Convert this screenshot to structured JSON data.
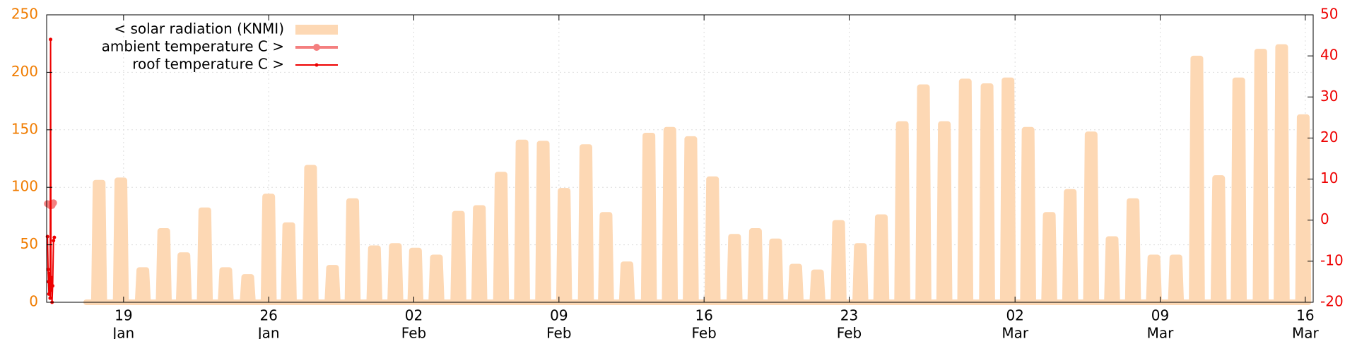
{
  "chart_data": {
    "type": "line",
    "grid": true,
    "legend": "top left",
    "xlim": [
      15.29,
      76.38
    ],
    "xticks": [
      {
        "value": 19,
        "label": "19",
        "month": "Jan"
      },
      {
        "value": 26,
        "label": "26",
        "month": "Jan"
      },
      {
        "value": 33,
        "label": "02",
        "month": "Feb"
      },
      {
        "value": 40,
        "label": "09",
        "month": "Feb"
      },
      {
        "value": 47,
        "label": "16",
        "month": "Feb"
      },
      {
        "value": 54,
        "label": "23",
        "month": "Feb"
      },
      {
        "value": 62,
        "label": "02",
        "month": "Mar"
      },
      {
        "value": 69,
        "label": "09",
        "month": "Mar"
      },
      {
        "value": 76,
        "label": "16",
        "month": "Mar"
      }
    ],
    "ylim": [
      0,
      250
    ],
    "yticks": [
      0,
      50,
      100,
      150,
      200,
      250
    ],
    "ycolor": "#f07c00",
    "y2lim": [
      -20,
      50
    ],
    "y2ticks": [
      -20,
      -10,
      0,
      10,
      20,
      30,
      40,
      50
    ],
    "y2color": "#ee0000",
    "series": [
      {
        "name": "< solar radiation (KNMI)",
        "color": "#fdd8b4",
        "axis": "y",
        "fill": true,
        "markers": false,
        "x": [
          17.2,
          17.57,
          17.65,
          17.99,
          18.07,
          18.62,
          18.7,
          19.04,
          19.12,
          19.68,
          19.76,
          20.1,
          20.18,
          20.69,
          20.77,
          21.11,
          21.19,
          21.66,
          21.74,
          22.08,
          22.16,
          22.67,
          22.75,
          23.09,
          23.17,
          23.68,
          23.76,
          24.1,
          24.18,
          24.74,
          24.82,
          25.16,
          25.24,
          25.75,
          25.83,
          26.17,
          26.25,
          26.72,
          26.8,
          27.14,
          27.22,
          27.77,
          27.85,
          28.19,
          28.27,
          28.83,
          28.91,
          29.25,
          29.33,
          29.8,
          29.88,
          30.22,
          30.3,
          30.85,
          30.93,
          31.27,
          31.35,
          31.86,
          31.94,
          32.28,
          32.36,
          32.83,
          32.91,
          33.25,
          33.33,
          33.84,
          33.92,
          34.26,
          34.34,
          34.9,
          34.98,
          35.32,
          35.4,
          35.91,
          35.99,
          36.33,
          36.41,
          36.96,
          37.04,
          37.38,
          37.46,
          37.97,
          38.05,
          38.39,
          38.47,
          38.99,
          39.07,
          39.41,
          39.49,
          40.0,
          40.08,
          40.42,
          40.5,
          41.05,
          41.13,
          41.47,
          41.55,
          42.02,
          42.1,
          42.44,
          42.52,
          43.03,
          43.11,
          43.45,
          43.53,
          44.09,
          44.17,
          44.51,
          44.59,
          45.1,
          45.18,
          45.52,
          45.6,
          46.11,
          46.19,
          46.53,
          46.61,
          47.16,
          47.24,
          47.58,
          47.66,
          48.22,
          48.3,
          48.64,
          48.72,
          49.23,
          49.31,
          49.65,
          49.73,
          50.2,
          50.28,
          50.62,
          50.7,
          51.17,
          51.25,
          51.59,
          51.67,
          52.22,
          52.3,
          52.64,
          52.72,
          53.24,
          53.32,
          53.66,
          53.74,
          54.29,
          54.37,
          54.71,
          54.79,
          55.3,
          55.38,
          55.72,
          55.8,
          56.31,
          56.39,
          56.73,
          56.81,
          57.33,
          57.41,
          57.75,
          57.83,
          58.34,
          58.42,
          58.76,
          58.84,
          59.35,
          59.43,
          59.77,
          59.85,
          60.4,
          60.48,
          60.82,
          60.9,
          61.41,
          61.49,
          61.83,
          61.91,
          62.38,
          62.46,
          62.8,
          62.88,
          63.4,
          63.48,
          63.82,
          63.9,
          64.41,
          64.49,
          64.83,
          64.91,
          65.42,
          65.5,
          65.84,
          65.92,
          66.43,
          66.51,
          66.85,
          66.93,
          67.44,
          67.52,
          67.86,
          67.94,
          68.45,
          68.53,
          68.87,
          68.95,
          69.51,
          69.59,
          69.93,
          70.01,
          70.52,
          70.6,
          70.94,
          71.02,
          71.57,
          71.65,
          71.99,
          72.07,
          72.54,
          72.62,
          72.96,
          73.04,
          73.6,
          73.68,
          74.02,
          74.1,
          74.61,
          74.69,
          75.03,
          75.11,
          75.65,
          75.73,
          76.07,
          76.15
        ],
        "values": [
          0,
          0,
          104,
          104,
          0,
          0,
          106,
          106,
          0,
          0,
          28,
          28,
          0,
          0,
          62,
          62,
          0,
          0,
          41,
          41,
          0,
          0,
          80,
          80,
          0,
          0,
          28,
          28,
          0,
          0,
          22,
          22,
          0,
          0,
          92,
          92,
          0,
          0,
          67,
          67,
          0,
          0,
          117,
          117,
          0,
          0,
          30,
          30,
          0,
          0,
          88,
          88,
          0,
          0,
          47,
          47,
          0,
          0,
          49,
          49,
          0,
          0,
          45,
          45,
          0,
          0,
          39,
          39,
          0,
          0,
          77,
          77,
          0,
          0,
          82,
          82,
          0,
          0,
          111,
          111,
          0,
          0,
          139,
          139,
          0,
          0,
          138,
          138,
          0,
          0,
          97,
          97,
          0,
          0,
          135,
          135,
          0,
          0,
          76,
          76,
          0,
          0,
          33,
          33,
          0,
          0,
          145,
          145,
          0,
          0,
          150,
          150,
          0,
          0,
          142,
          142,
          0,
          0,
          107,
          107,
          0,
          0,
          57,
          57,
          0,
          0,
          62,
          62,
          0,
          0,
          53,
          53,
          0,
          0,
          31,
          31,
          0,
          0,
          26,
          26,
          0,
          0,
          69,
          69,
          0,
          0,
          49,
          49,
          0,
          0,
          74,
          74,
          0,
          0,
          155,
          155,
          0,
          0,
          187,
          187,
          0,
          0,
          155,
          155,
          0,
          0,
          192,
          192,
          0,
          0,
          188,
          188,
          0,
          0,
          193,
          193,
          0,
          0,
          150,
          150,
          0,
          0,
          76,
          76,
          0,
          0,
          96,
          96,
          0,
          0,
          146,
          146,
          0,
          0,
          55,
          55,
          0,
          0,
          88,
          88,
          0,
          0,
          39,
          39,
          0,
          0,
          39,
          39,
          0,
          0,
          212,
          212,
          0,
          0,
          108,
          108,
          0,
          0,
          193,
          193,
          0,
          0,
          218,
          218,
          0,
          0,
          222,
          222,
          0,
          0,
          161,
          161,
          0
        ]
      },
      {
        "name": "ambient temperature C >",
        "color": "#f47f7f",
        "axis": "y2",
        "fill": false,
        "markers": true,
        "x": [
          15.33,
          15.4,
          15.48,
          15.55,
          15.62
        ],
        "values": [
          4,
          3.8,
          3.5,
          3.6,
          4.2
        ]
      },
      {
        "name": "roof temperature C >",
        "color": "#ee0000",
        "axis": "y2",
        "fill": false,
        "markers": true,
        "x": [
          15.33,
          15.36,
          15.38,
          15.4,
          15.42,
          15.44,
          15.46,
          15.48,
          15.5,
          15.52,
          15.55,
          15.58,
          15.62,
          15.66
        ],
        "values": [
          -4,
          -12,
          -15,
          -18,
          -13,
          -16,
          -19,
          44,
          -17,
          -14,
          -20,
          -16,
          -5,
          -4.2
        ]
      }
    ]
  }
}
